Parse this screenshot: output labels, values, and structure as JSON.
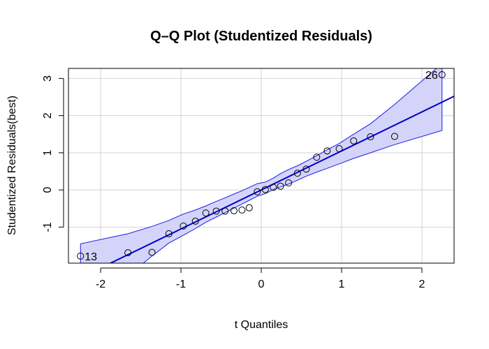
{
  "chart_data": {
    "type": "scatter",
    "title": "Q–Q Plot (Studentized Residuals)",
    "xlabel": "t Quantiles",
    "ylabel": "Studentized Residuals(best)",
    "xlim": [
      -2.4,
      2.4
    ],
    "ylim": [
      -1.97,
      3.27
    ],
    "xticks": [
      -2,
      -1,
      0,
      1,
      2
    ],
    "yticks": [
      -1,
      0,
      1,
      2,
      3
    ],
    "grid": true,
    "colors": {
      "points": "#000000",
      "reference_line": "#0000cd",
      "band_fill": "#d4d4fa",
      "band_edge": "#1c1ce6",
      "grid": "#d3d3d3"
    },
    "points": {
      "x": [
        -2.25,
        -1.66,
        -1.36,
        -1.15,
        -0.97,
        -0.82,
        -0.69,
        -0.56,
        -0.45,
        -0.34,
        -0.24,
        -0.15,
        -0.05,
        0.05,
        0.15,
        0.24,
        0.34,
        0.45,
        0.56,
        0.69,
        0.82,
        0.97,
        1.15,
        1.36,
        1.66,
        2.25
      ],
      "y": [
        -1.78,
        -1.69,
        -1.68,
        -1.18,
        -0.97,
        -0.84,
        -0.62,
        -0.57,
        -0.57,
        -0.56,
        -0.54,
        -0.48,
        -0.05,
        0.01,
        0.07,
        0.1,
        0.19,
        0.45,
        0.56,
        0.88,
        1.05,
        1.11,
        1.32,
        1.43,
        1.44,
        3.1
      ]
    },
    "labeled_points": [
      {
        "label": "13",
        "x": -2.25,
        "y": -1.78,
        "side": "right"
      },
      {
        "label": "26",
        "x": 2.25,
        "y": 3.1,
        "side": "left"
      }
    ],
    "reference_line": {
      "intercept": 0.0,
      "slope": 1.05
    },
    "confidence_band": {
      "x": [
        -2.25,
        -1.66,
        -1.36,
        -1.15,
        -0.97,
        -0.82,
        -0.69,
        -0.56,
        -0.45,
        -0.34,
        -0.24,
        -0.15,
        -0.05,
        0.05,
        0.15,
        0.24,
        0.34,
        0.45,
        0.56,
        0.69,
        0.82,
        0.97,
        1.15,
        1.36,
        1.66,
        2.25
      ],
      "upper": [
        -1.45,
        -1.18,
        -0.98,
        -0.82,
        -0.65,
        -0.54,
        -0.43,
        -0.31,
        -0.21,
        -0.11,
        -0.02,
        0.07,
        0.17,
        0.21,
        0.32,
        0.44,
        0.55,
        0.65,
        0.77,
        0.92,
        1.08,
        1.25,
        1.5,
        1.78,
        2.3,
        3.4
      ],
      "lower": [
        -2.4,
        -2.3,
        -1.78,
        -1.43,
        -1.22,
        -1.04,
        -0.87,
        -0.73,
        -0.61,
        -0.49,
        -0.38,
        -0.28,
        -0.17,
        -0.1,
        0.01,
        0.08,
        0.16,
        0.26,
        0.37,
        0.48,
        0.58,
        0.7,
        0.85,
        1.0,
        1.22,
        1.6
      ]
    }
  }
}
